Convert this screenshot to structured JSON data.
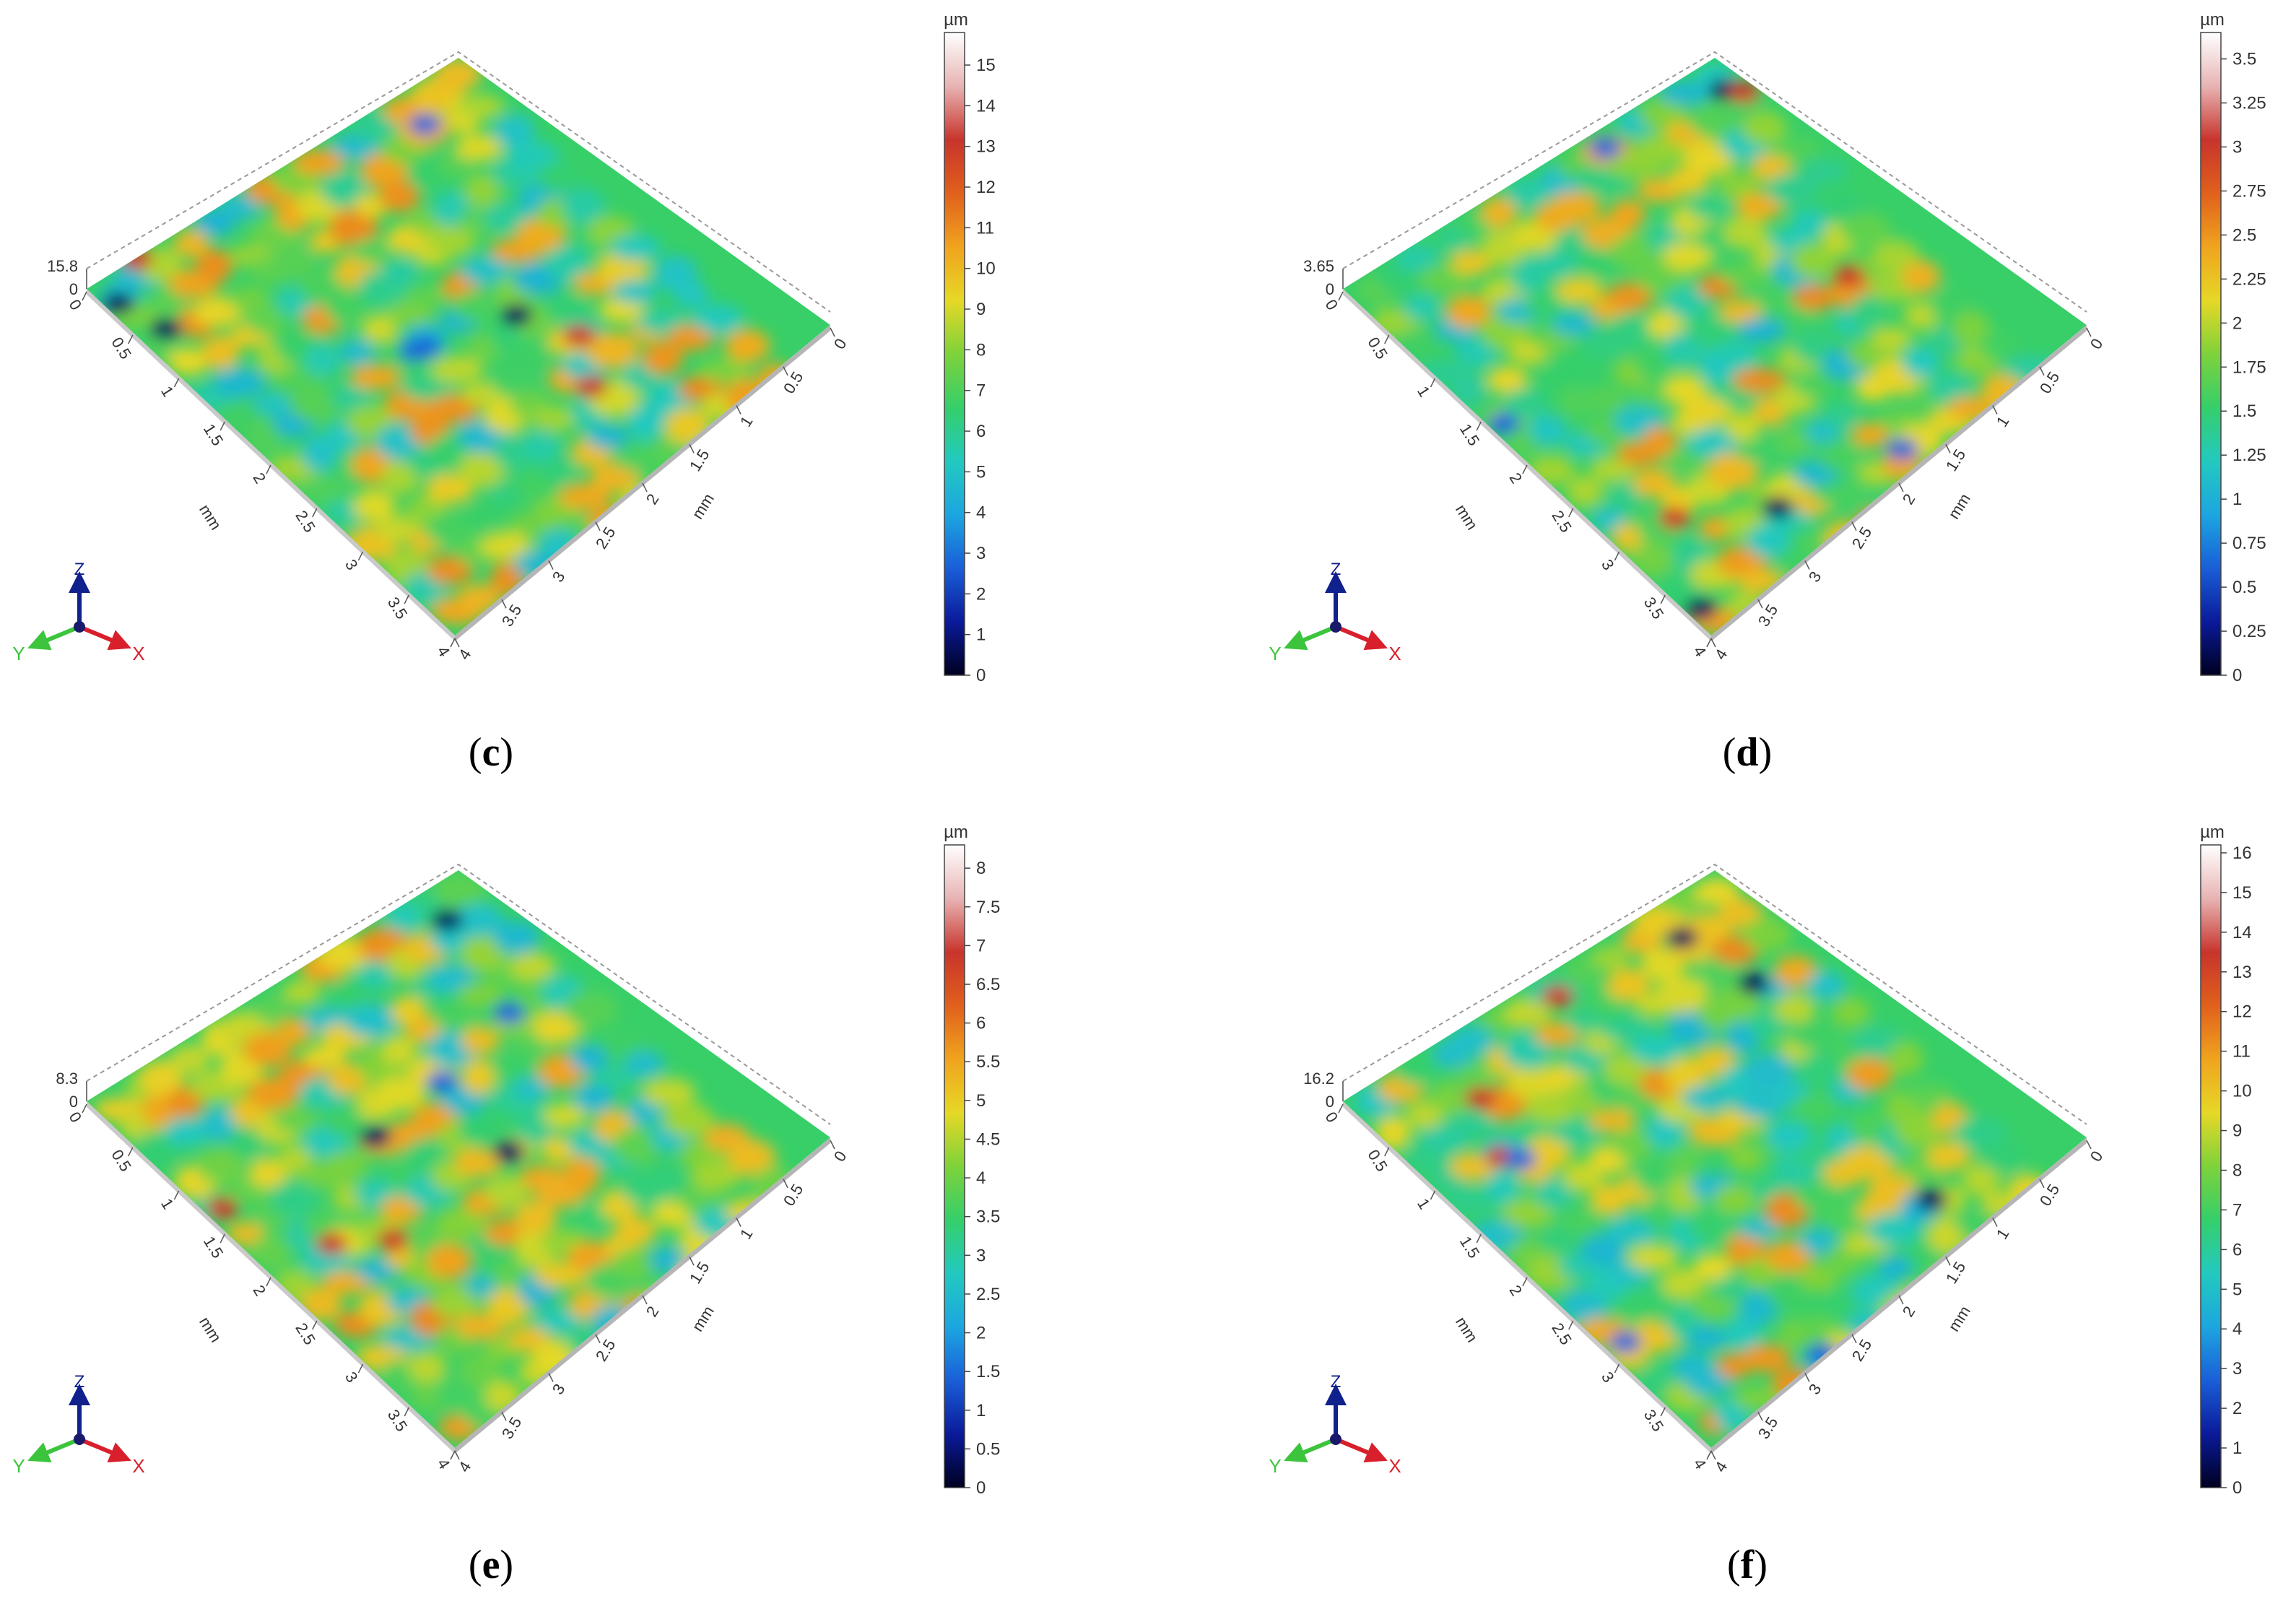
{
  "colors": {
    "scale": [
      "#000020",
      "#0a1a9a",
      "#1a5fd8",
      "#1ca6e0",
      "#22c9bf",
      "#35cf6a",
      "#7fd23a",
      "#e6d826",
      "#f0a31e",
      "#e0601c",
      "#c8342c",
      "#e8b4b4",
      "#ffffff"
    ],
    "axis_x": "#d8202c",
    "axis_y": "#3cc43c",
    "axis_z": "#10208c"
  },
  "chart_data": [
    {
      "type": "heatmap",
      "panel_label": "c",
      "z_max_label": "15.8",
      "z_min_label": "0",
      "colorbar": {
        "unit": "µm",
        "ticks": [
          "0",
          "1",
          "2",
          "3",
          "4",
          "5",
          "6",
          "7",
          "8",
          "9",
          "10",
          "11",
          "12",
          "13",
          "14",
          "15"
        ],
        "range": [
          0,
          15.8
        ]
      },
      "x_axis": {
        "label": "mm",
        "ticks": [
          "0",
          "0.5",
          "1",
          "1.5",
          "2",
          "2.5",
          "3",
          "3.5",
          "4"
        ]
      },
      "y_axis": {
        "label": "mm",
        "ticks": [
          "0",
          "0.5",
          "1",
          "1.5",
          "2",
          "2.5",
          "3",
          "3.5",
          "4"
        ]
      },
      "triad": {
        "x": "X",
        "y": "Y",
        "z": "Z"
      }
    },
    {
      "type": "heatmap",
      "panel_label": "d",
      "z_max_label": "3.65",
      "z_min_label": "0",
      "colorbar": {
        "unit": "µm",
        "ticks": [
          "0",
          "0.25",
          "0.5",
          "0.75",
          "1",
          "1.25",
          "1.5",
          "1.75",
          "2",
          "2.25",
          "2.5",
          "2.75",
          "3",
          "3.25",
          "3.5"
        ],
        "range": [
          0,
          3.65
        ]
      },
      "x_axis": {
        "label": "mm",
        "ticks": [
          "0",
          "0.5",
          "1",
          "1.5",
          "2",
          "2.5",
          "3",
          "3.5",
          "4"
        ]
      },
      "y_axis": {
        "label": "mm",
        "ticks": [
          "0",
          "0.5",
          "1",
          "1.5",
          "2",
          "2.5",
          "3",
          "3.5",
          "4"
        ]
      },
      "triad": {
        "x": "X",
        "y": "Y",
        "z": "Z"
      }
    },
    {
      "type": "heatmap",
      "panel_label": "e",
      "z_max_label": "8.3",
      "z_min_label": "0",
      "colorbar": {
        "unit": "µm",
        "ticks": [
          "0",
          "0.5",
          "1",
          "1.5",
          "2",
          "2.5",
          "3",
          "3.5",
          "4",
          "4.5",
          "5",
          "5.5",
          "6",
          "6.5",
          "7",
          "7.5",
          "8"
        ],
        "range": [
          0,
          8.3
        ]
      },
      "x_axis": {
        "label": "mm",
        "ticks": [
          "0",
          "0.5",
          "1",
          "1.5",
          "2",
          "2.5",
          "3",
          "3.5",
          "4"
        ]
      },
      "y_axis": {
        "label": "mm",
        "ticks": [
          "0",
          "0.5",
          "1",
          "1.5",
          "2",
          "2.5",
          "3",
          "3.5",
          "4"
        ]
      },
      "triad": {
        "x": "X",
        "y": "Y",
        "z": "Z"
      }
    },
    {
      "type": "heatmap",
      "panel_label": "f",
      "z_max_label": "16.2",
      "z_min_label": "0",
      "colorbar": {
        "unit": "µm",
        "ticks": [
          "0",
          "1",
          "2",
          "3",
          "4",
          "5",
          "6",
          "7",
          "8",
          "9",
          "10",
          "11",
          "12",
          "13",
          "14",
          "15",
          "16"
        ],
        "range": [
          0,
          16.2
        ]
      },
      "x_axis": {
        "label": "mm",
        "ticks": [
          "0",
          "0.5",
          "1",
          "1.5",
          "2",
          "2.5",
          "3",
          "3.5",
          "4"
        ]
      },
      "y_axis": {
        "label": "mm",
        "ticks": [
          "0",
          "0.5",
          "1",
          "1.5",
          "2",
          "2.5",
          "3",
          "3.5",
          "4"
        ]
      },
      "triad": {
        "x": "X",
        "y": "Y",
        "z": "Z"
      }
    }
  ]
}
